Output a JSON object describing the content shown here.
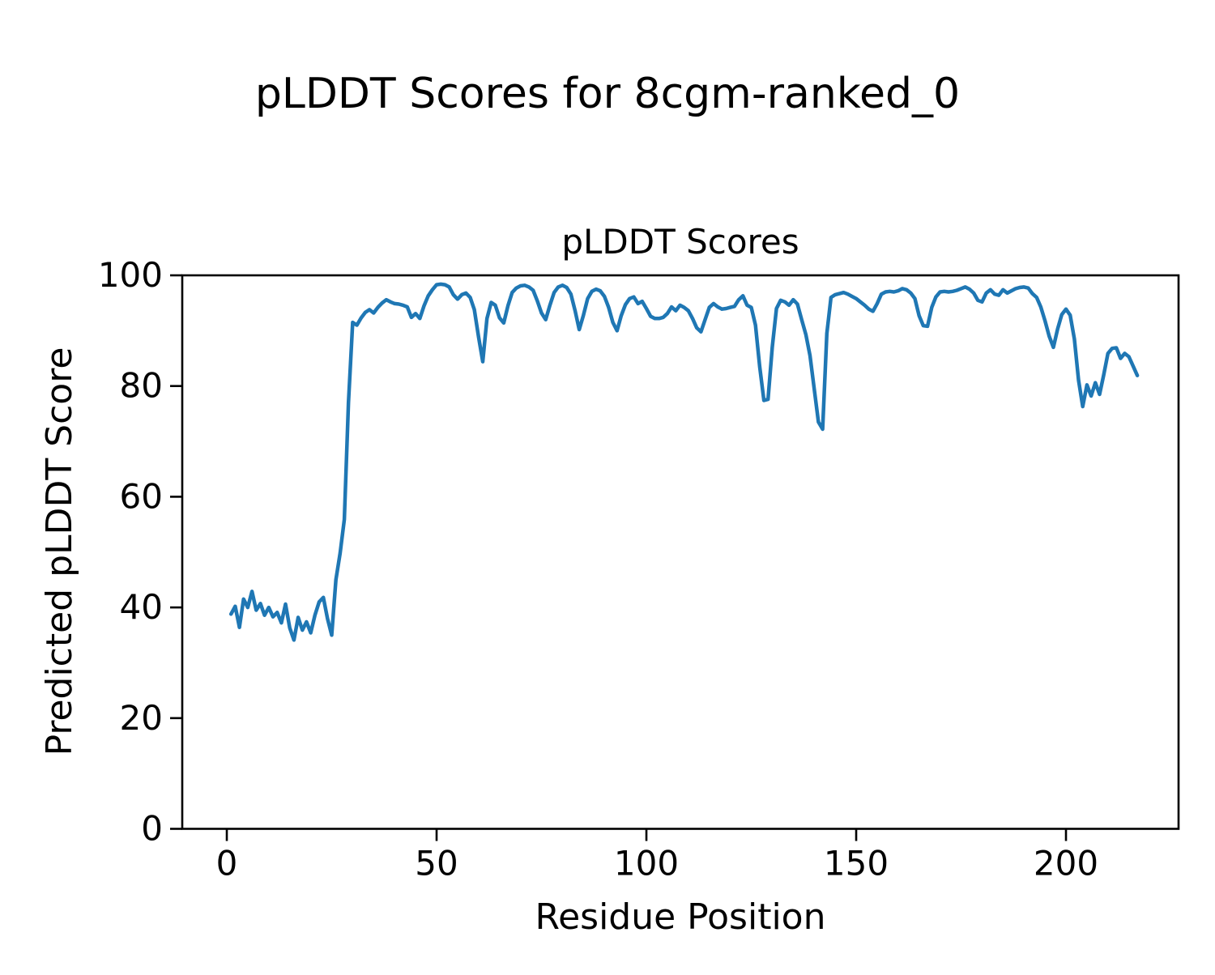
{
  "figure": {
    "suptitle": "pLDDT Scores for 8cgm-ranked_0",
    "axes_title": "pLDDT Scores",
    "xlabel": "Residue Position",
    "ylabel": "Predicted pLDDT Score",
    "background_color": "#ffffff",
    "text_color": "#000000"
  },
  "chart_data": {
    "type": "line",
    "title": "pLDDT Scores",
    "suptitle": "pLDDT Scores for 8cgm-ranked_0",
    "xlabel": "Residue Position",
    "ylabel": "Predicted pLDDT Score",
    "xlim": [
      -10.62,
      226.83
    ],
    "ylim": [
      0,
      100
    ],
    "xticks": [
      0,
      50,
      100,
      150,
      200
    ],
    "yticks": [
      0,
      20,
      40,
      60,
      80,
      100
    ],
    "grid": false,
    "legend_position": "none",
    "line_color": "#1f77b4",
    "line_width": 4.5,
    "series": [
      {
        "name": "pLDDT",
        "x_start": 1,
        "x_step": 1,
        "values": [
          38.8,
          40.2,
          36.4,
          41.5,
          40.0,
          42.9,
          39.5,
          40.7,
          38.6,
          40.0,
          38.3,
          39.1,
          37.2,
          40.6,
          36.3,
          34.1,
          38.2,
          35.9,
          37.4,
          35.4,
          38.6,
          41.0,
          41.8,
          38.0,
          35.0,
          45.0,
          49.8,
          55.9,
          77.0,
          91.5,
          91.0,
          92.3,
          93.3,
          93.8,
          93.2,
          94.2,
          95.0,
          95.6,
          95.2,
          94.9,
          94.8,
          94.6,
          94.3,
          92.4,
          93.1,
          92.2,
          94.5,
          96.3,
          97.4,
          98.3,
          98.4,
          98.3,
          97.9,
          96.5,
          95.7,
          96.5,
          96.8,
          96.0,
          93.8,
          88.9,
          84.4,
          92.2,
          95.1,
          94.6,
          92.3,
          91.4,
          94.5,
          96.9,
          97.7,
          98.1,
          98.2,
          97.9,
          97.3,
          95.4,
          93.2,
          92.0,
          94.6,
          96.9,
          97.9,
          98.2,
          97.8,
          96.6,
          93.6,
          90.2,
          92.8,
          95.8,
          97.1,
          97.5,
          97.2,
          96.2,
          94.2,
          91.5,
          90.0,
          92.7,
          94.7,
          95.8,
          96.1,
          94.9,
          95.3,
          94.0,
          92.6,
          92.2,
          92.2,
          92.4,
          93.1,
          94.3,
          93.6,
          94.6,
          94.2,
          93.6,
          92.2,
          90.5,
          89.8,
          92.0,
          94.2,
          94.9,
          94.3,
          93.9,
          94.0,
          94.2,
          94.4,
          95.6,
          96.3,
          94.6,
          94.2,
          91.0,
          83.5,
          77.4,
          77.6,
          87.0,
          94.0,
          95.5,
          95.2,
          94.6,
          95.6,
          94.8,
          92.0,
          89.3,
          85.5,
          79.5,
          73.5,
          72.2,
          89.5,
          96.0,
          96.5,
          96.7,
          96.9,
          96.6,
          96.2,
          95.8,
          95.2,
          94.6,
          93.9,
          93.5,
          94.9,
          96.6,
          97.0,
          97.1,
          97.0,
          97.2,
          97.6,
          97.4,
          96.8,
          95.8,
          92.7,
          90.9,
          90.8,
          94.2,
          96.1,
          97.0,
          97.1,
          97.0,
          97.1,
          97.3,
          97.6,
          97.9,
          97.5,
          96.8,
          95.5,
          95.2,
          96.8,
          97.4,
          96.6,
          96.4,
          97.4,
          96.8,
          97.2,
          97.6,
          97.8,
          97.9,
          97.7,
          96.7,
          96.0,
          94.3,
          91.8,
          89.0,
          87.0,
          90.3,
          92.9,
          93.9,
          92.8,
          88.5,
          81.0,
          76.3,
          80.2,
          78.2,
          80.6,
          78.5,
          82.0,
          85.9,
          86.8,
          86.9,
          85.0,
          85.9,
          85.3,
          83.6,
          81.9
        ]
      }
    ]
  }
}
